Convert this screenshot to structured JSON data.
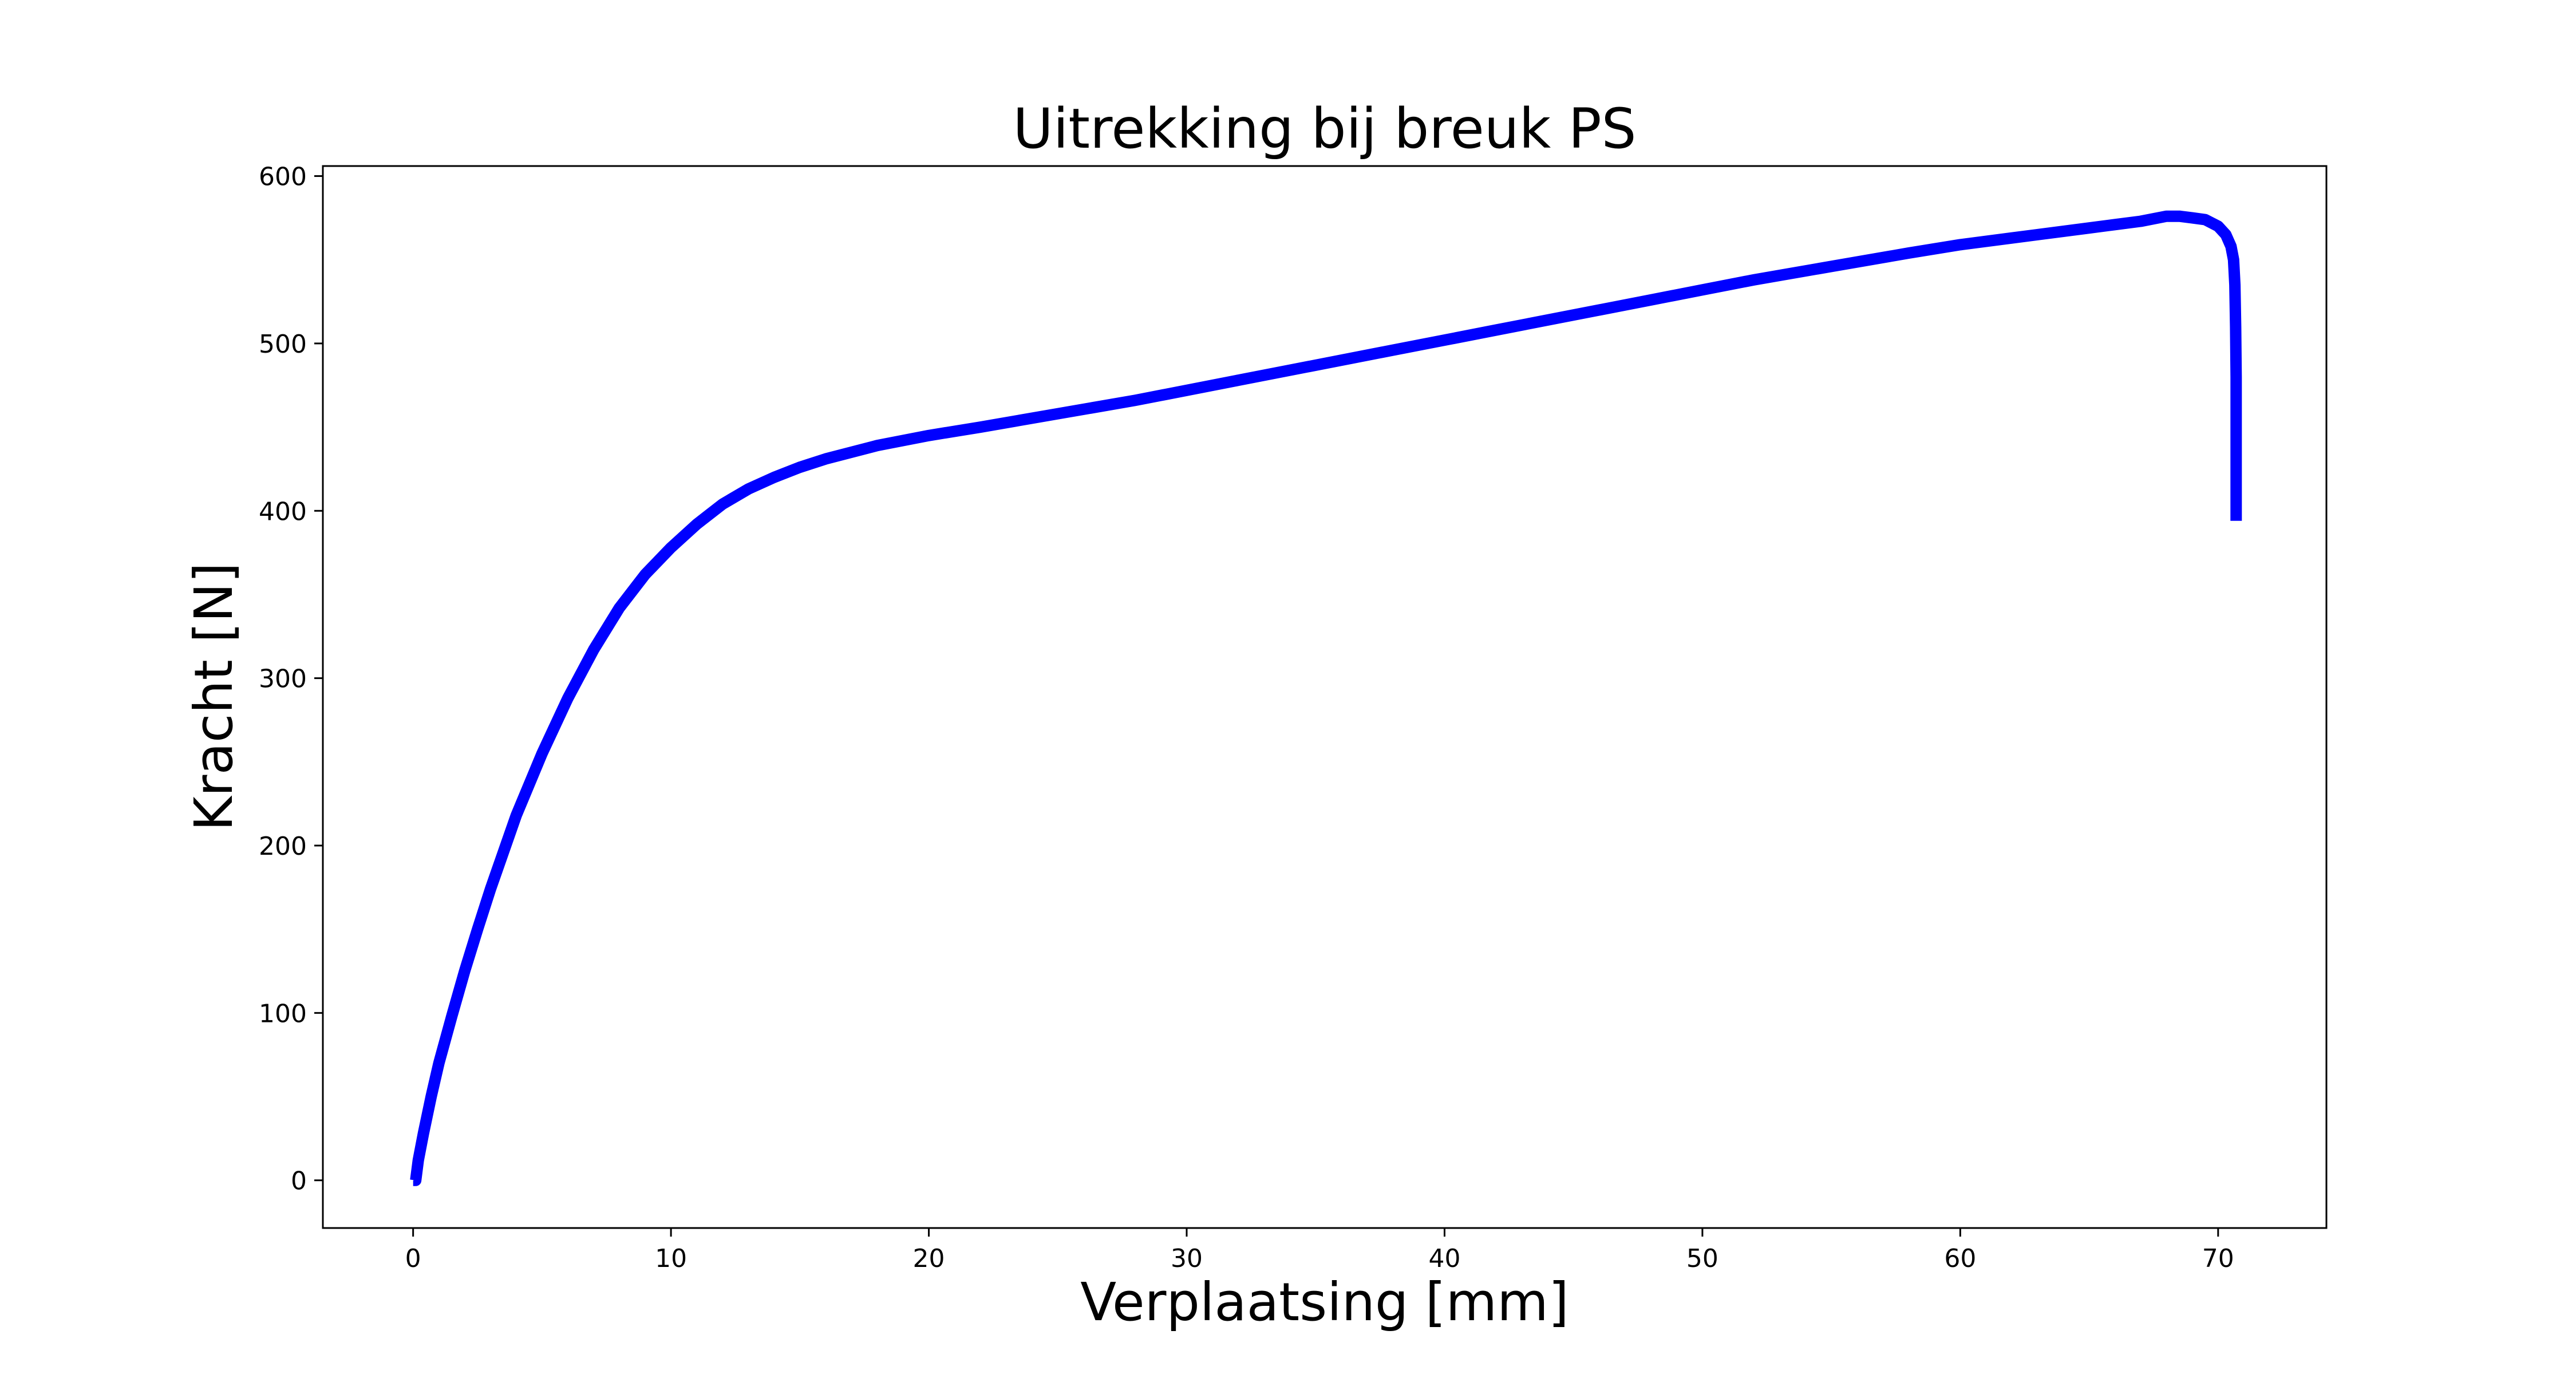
{
  "chart_data": {
    "type": "line",
    "title": "Uitrekking bij breuk PS",
    "xlabel": "Verplaatsing [mm]",
    "ylabel": "Kracht [N]",
    "xlim": [
      -3.5,
      74.2
    ],
    "ylim": [
      -28.5,
      606
    ],
    "xticks": [
      0,
      10,
      20,
      30,
      40,
      50,
      60,
      70
    ],
    "xtick_labels": [
      "0",
      "10",
      "20",
      "30",
      "40",
      "50",
      "60",
      "70"
    ],
    "yticks": [
      0,
      100,
      200,
      300,
      400,
      500,
      600
    ],
    "ytick_labels": [
      "0",
      "100",
      "200",
      "300",
      "400",
      "500",
      "600"
    ],
    "grid": false,
    "series": [
      {
        "color": "#0000ff",
        "x": [
          0,
          0.1,
          0.2,
          0.4,
          0.7,
          1,
          1.5,
          2,
          2.5,
          3,
          4,
          5,
          6,
          7,
          8,
          9,
          10,
          11,
          12,
          13,
          14,
          15,
          16,
          18,
          20,
          22,
          25,
          28,
          30,
          32,
          35,
          38,
          40,
          42,
          45,
          48,
          50,
          52,
          55,
          58,
          60,
          62,
          65,
          66,
          67,
          68,
          68.5,
          69,
          69.5,
          70,
          70.3,
          70.5,
          70.6,
          70.65,
          70.68,
          70.7,
          70.7,
          70.7,
          70.7
        ],
        "y": [
          0,
          0,
          12,
          28,
          50,
          70,
          98,
          125,
          150,
          174,
          218,
          255,
          288,
          317,
          342,
          362,
          378,
          392,
          404,
          413,
          420,
          426,
          431,
          439,
          445,
          450,
          458,
          466,
          472,
          478,
          487,
          496,
          502,
          508,
          517,
          526,
          532,
          538,
          546,
          554,
          559,
          563,
          569,
          571,
          573,
          576,
          576,
          575,
          574,
          570,
          565,
          558,
          550,
          535,
          510,
          480,
          450,
          420,
          394
        ]
      }
    ]
  }
}
